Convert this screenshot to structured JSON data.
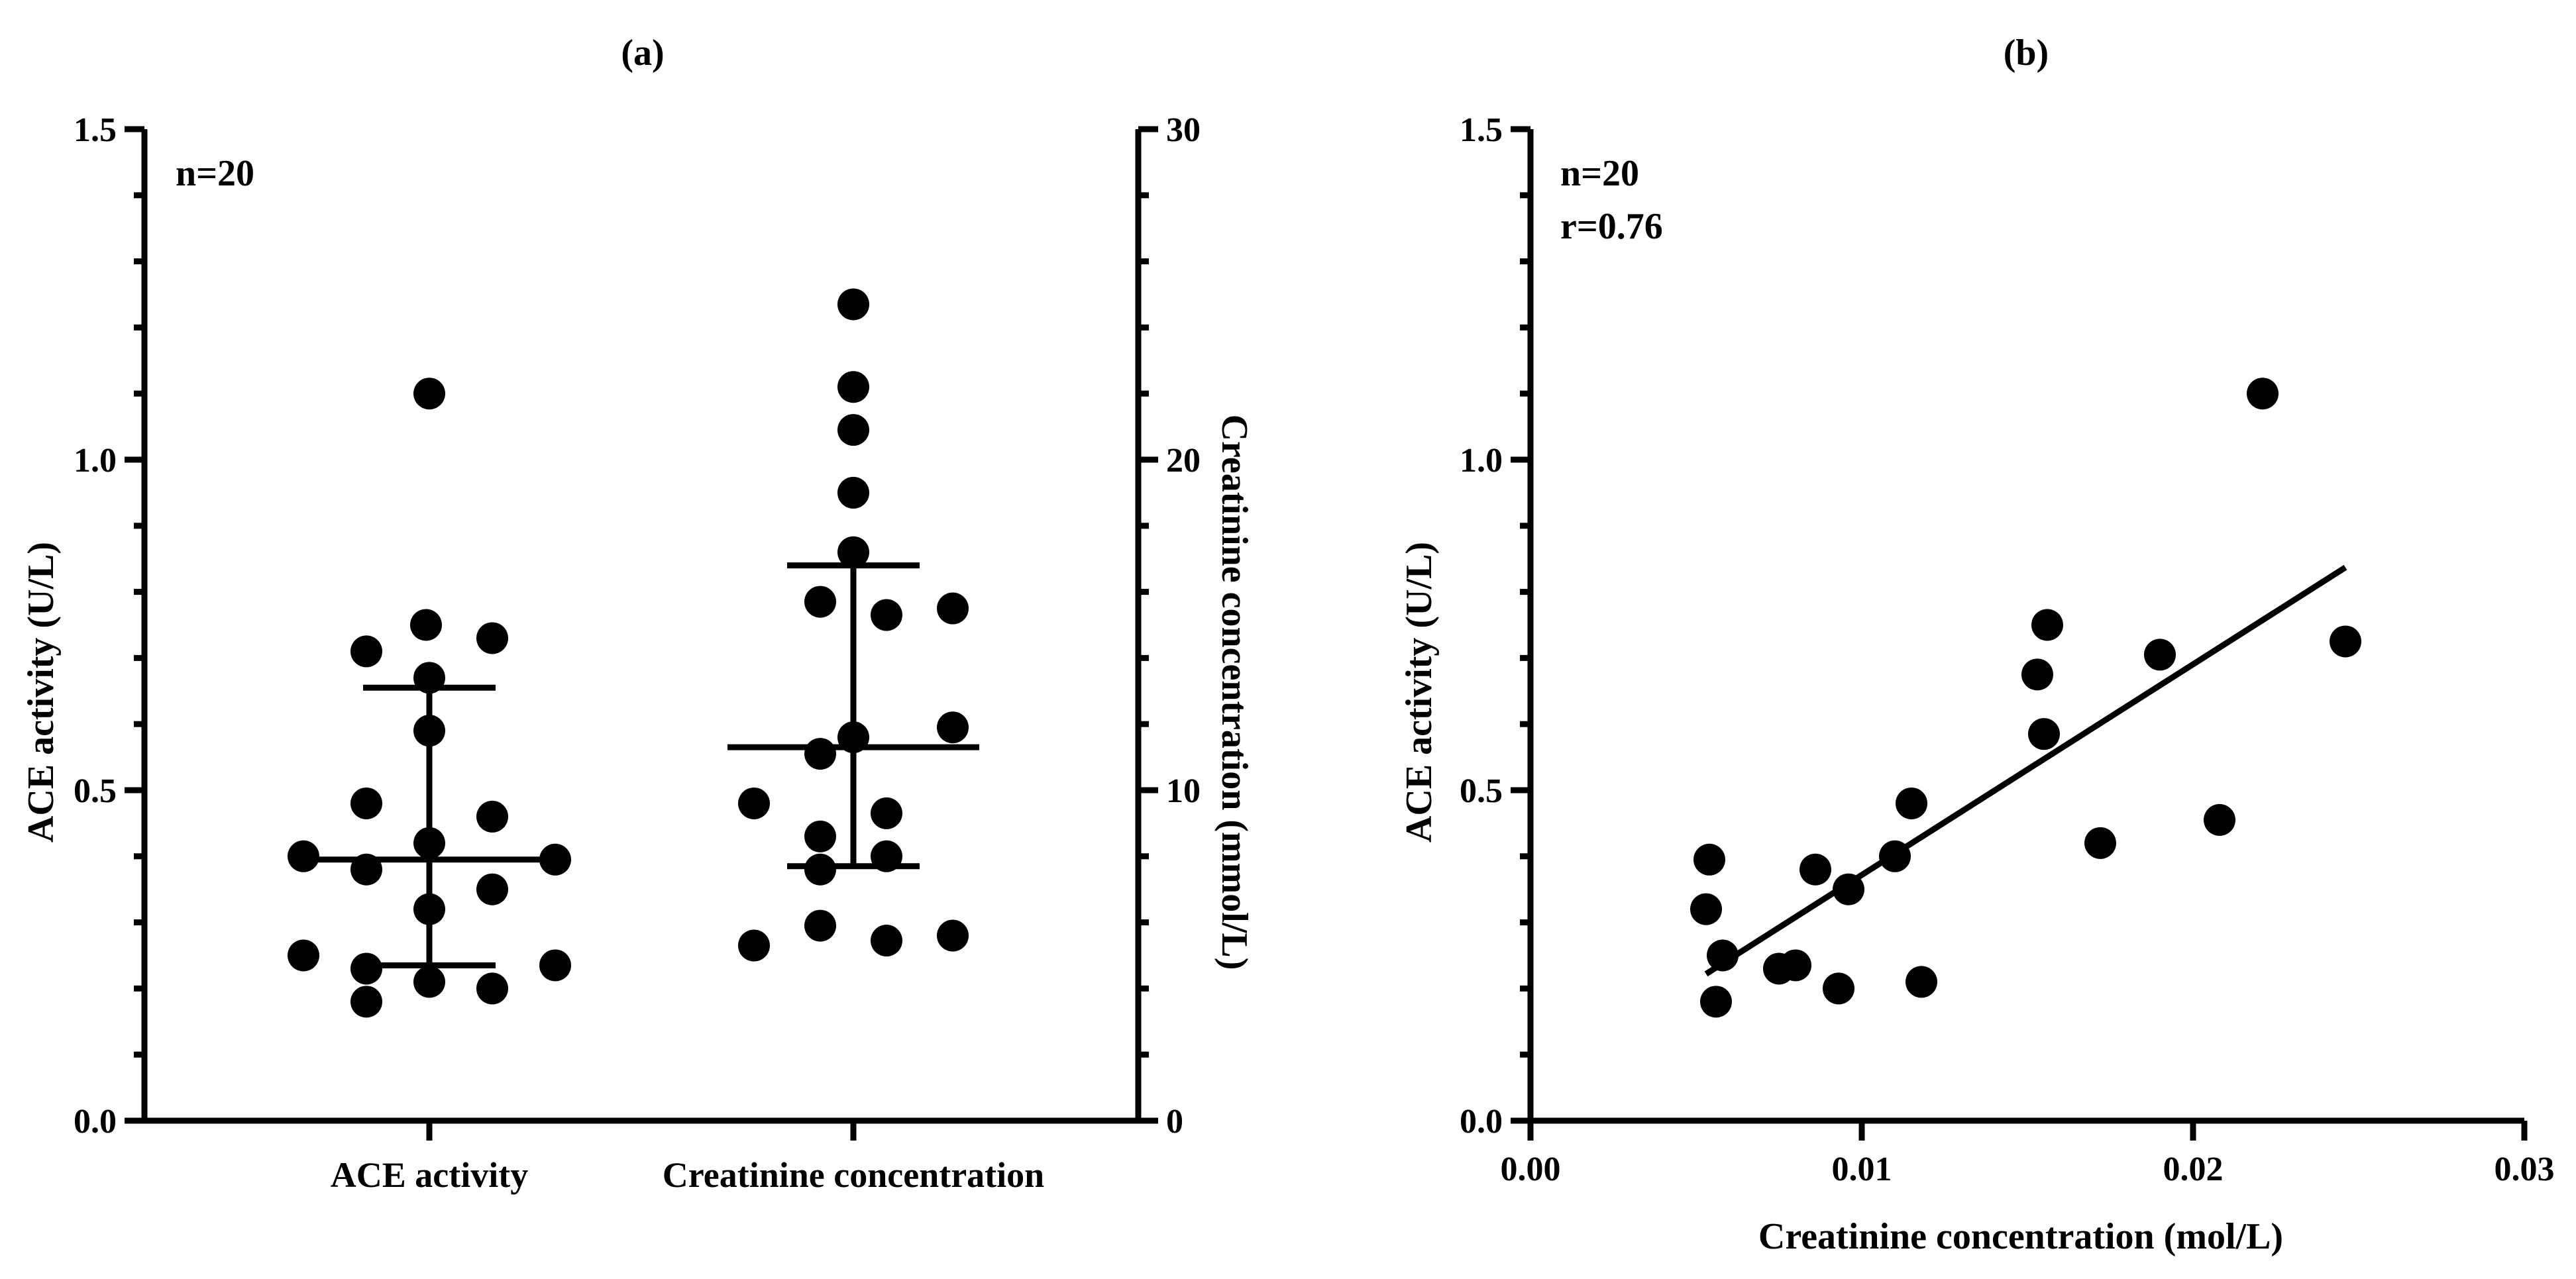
{
  "chart_data": [
    {
      "type": "scatter",
      "subtype": "dot-plot",
      "panel_label": "(a)",
      "annotation": "n=20",
      "categories": [
        "ACE activity",
        "Creatinine concentration"
      ],
      "left_axis": {
        "label": "ACE activity (U/L)",
        "ylim": [
          0,
          1.5
        ],
        "ticks": [
          "0.0",
          "0.5",
          "1.0",
          "1.5"
        ]
      },
      "right_axis": {
        "label": "Creatinine concentration (mmol/L)",
        "ylim": [
          0,
          30
        ],
        "ticks": [
          "0",
          "10",
          "20",
          "30"
        ]
      },
      "series": [
        {
          "category": "ACE activity",
          "axis": "left",
          "values": [
            1.1,
            0.75,
            0.73,
            0.71,
            0.67,
            0.59,
            0.48,
            0.46,
            0.42,
            0.4,
            0.395,
            0.38,
            0.35,
            0.32,
            0.25,
            0.235,
            0.23,
            0.21,
            0.2,
            0.18
          ],
          "median": 0.395,
          "iqr": [
            0.235,
            0.655
          ]
        },
        {
          "category": "Creatinine concentration",
          "axis": "right",
          "values": [
            24.7,
            22.2,
            20.9,
            19.0,
            17.2,
            15.7,
            15.5,
            15.3,
            11.9,
            11.6,
            11.1,
            9.6,
            9.3,
            8.6,
            8.0,
            7.6,
            5.9,
            5.6,
            5.45,
            5.3
          ],
          "median": 11.3,
          "iqr": [
            7.7,
            16.8
          ]
        }
      ],
      "grid": false
    },
    {
      "type": "scatter",
      "panel_label": "(b)",
      "annotations": [
        "n=20",
        "r=0.76"
      ],
      "xlabel": "Creatinine concentration (mol/L)",
      "ylabel": "ACE activity (U/L)",
      "xlim": [
        0,
        0.03
      ],
      "ylim": [
        0,
        1.5
      ],
      "xticks": [
        "0.00",
        "0.01",
        "0.02",
        "0.03"
      ],
      "yticks": [
        "0.0",
        "0.5",
        "1.0",
        "1.5"
      ],
      "points": [
        [
          0.0221,
          1.1
        ],
        [
          0.0246,
          0.725
        ],
        [
          0.0156,
          0.75
        ],
        [
          0.019,
          0.705
        ],
        [
          0.0153,
          0.675
        ],
        [
          0.0155,
          0.585
        ],
        [
          0.0115,
          0.48
        ],
        [
          0.0208,
          0.455
        ],
        [
          0.0172,
          0.42
        ],
        [
          0.011,
          0.4
        ],
        [
          0.0054,
          0.395
        ],
        [
          0.0086,
          0.38
        ],
        [
          0.0096,
          0.35
        ],
        [
          0.0053,
          0.32
        ],
        [
          0.0058,
          0.25
        ],
        [
          0.008,
          0.235
        ],
        [
          0.0075,
          0.23
        ],
        [
          0.0118,
          0.21
        ],
        [
          0.0093,
          0.2
        ],
        [
          0.0056,
          0.18
        ]
      ],
      "regression": {
        "x": [
          0.0053,
          0.0246
        ],
        "y": [
          0.222,
          0.837
        ]
      },
      "grid": false
    }
  ]
}
